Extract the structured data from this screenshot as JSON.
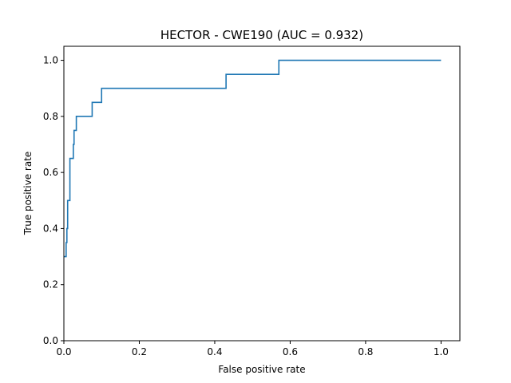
{
  "chart_data": {
    "type": "line",
    "title": "HECTOR - CWE190 (AUC = 0.932)",
    "xlabel": "False positive rate",
    "ylabel": "True positive rate",
    "xlim": [
      0.0,
      1.05
    ],
    "ylim": [
      0.0,
      1.05
    ],
    "xticks": [
      0.0,
      0.2,
      0.4,
      0.6,
      0.8,
      1.0
    ],
    "yticks": [
      0.0,
      0.2,
      0.4,
      0.6,
      0.8,
      1.0
    ],
    "xtick_labels": [
      "0.0",
      "0.2",
      "0.4",
      "0.6",
      "0.8",
      "1.0"
    ],
    "ytick_labels": [
      "0.0",
      "0.2",
      "0.4",
      "0.6",
      "0.8",
      "1.0"
    ],
    "grid": false,
    "legend": "none",
    "series": [
      {
        "color": "#1f77b4",
        "drawstyle": "steps",
        "x": [
          0.0,
          0.0,
          0.006,
          0.006,
          0.008,
          0.008,
          0.01,
          0.01,
          0.016,
          0.016,
          0.025,
          0.025,
          0.027,
          0.027,
          0.033,
          0.033,
          0.075,
          0.075,
          0.1,
          0.1,
          0.43,
          0.43,
          0.57,
          0.57,
          1.0
        ],
        "y": [
          0.3,
          0.3,
          0.3,
          0.35,
          0.35,
          0.4,
          0.4,
          0.5,
          0.5,
          0.65,
          0.65,
          0.7,
          0.7,
          0.75,
          0.75,
          0.8,
          0.8,
          0.85,
          0.85,
          0.9,
          0.9,
          0.95,
          0.95,
          1.0,
          1.0
        ]
      }
    ]
  }
}
